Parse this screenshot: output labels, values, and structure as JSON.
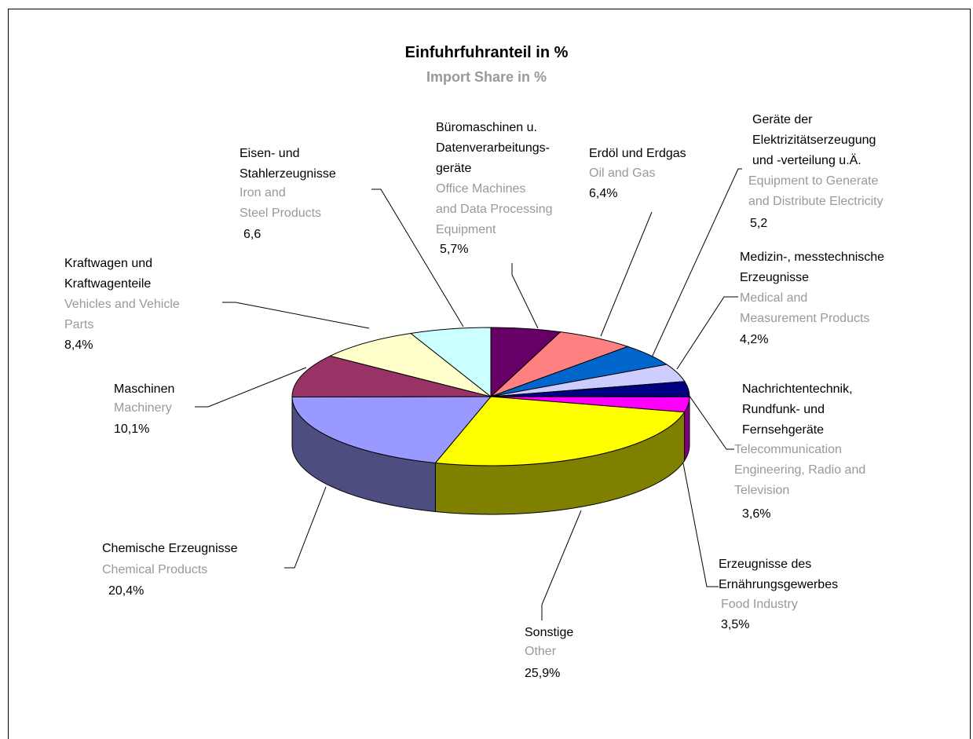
{
  "chart_data": {
    "type": "pie",
    "title": "Einfuhrfuhranteil in %",
    "subtitle": "Import Share in %",
    "categories": [
      "Büromaschinen u.\nDatenverarbeitungs-\ngeräte",
      "Erdöl und Erdgas",
      "Geräte der\nElektrizitätserzeugung\nund -verteilung u.Ä.",
      "Medizin-, messtechnische\nErzeugnisse",
      "Nachrichtentechnik,\nRundfunk- und\nFernsehgeräte",
      "Erzeugnisse des\nErnährungsgewerbes",
      "Sonstige",
      "Chemische Erzeugnisse",
      "Maschinen",
      "Kraftwagen und\nKraftwagenteile",
      "Eisen- und\nStahlerzeugnisse"
    ],
    "categories_en": [
      "Office Machines\nand Data Processing\nEquipment",
      "Oil and Gas",
      "Equipment to Generate\nand Distribute Electricity",
      "Medical and\nMeasurement Products",
      "Telecommunication\nEngineering, Radio and\nTelevision",
      "Food Industry",
      "Other",
      "Chemical Products",
      "Machinery",
      "Vehicles and Vehicle\nParts",
      "Iron and\nSteel Products"
    ],
    "values": [
      5.7,
      6.4,
      5.2,
      4.2,
      3.6,
      3.5,
      25.9,
      20.4,
      10.1,
      8.4,
      6.6
    ],
    "value_labels": [
      "5,7%",
      "6,4%",
      "5,2",
      "4,2%",
      "3,6%",
      "3,5%",
      "25,9%",
      "20,4%",
      "10,1%",
      "8,4%",
      "6,6"
    ],
    "colors": [
      "#660066",
      "#ff8080",
      "#0066cc",
      "#ccccff",
      "#000080",
      "#ff00ff",
      "#ffff00",
      "#9999ff",
      "#993366",
      "#ffffcc",
      "#ccffff"
    ]
  }
}
